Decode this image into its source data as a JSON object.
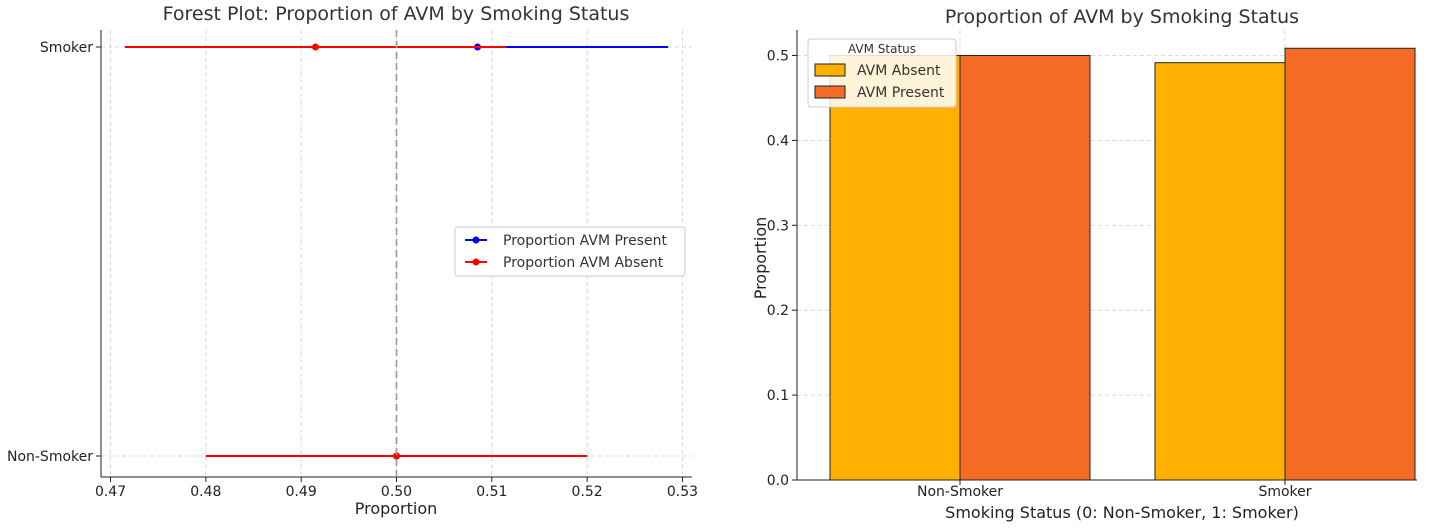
{
  "chart_data": [
    {
      "type": "forest",
      "title": "Forest Plot: Proportion of AVM by Smoking Status",
      "xlabel": "Proportion",
      "ylabel": "",
      "xlim": [
        0.469,
        0.531
      ],
      "xticks": [
        0.47,
        0.48,
        0.49,
        0.5,
        0.51,
        0.52,
        0.53
      ],
      "xtick_labels": [
        "0.47",
        "0.48",
        "0.49",
        "0.50",
        "0.51",
        "0.52",
        "0.53"
      ],
      "categories": [
        "Non-Smoker",
        "Smoker"
      ],
      "reference_line": 0.5,
      "grid": true,
      "legend_position": "center-right",
      "series": [
        {
          "name": "Proportion AVM Present",
          "color": "#0000ff",
          "points": [
            {
              "category": "Non-Smoker",
              "estimate": 0.5,
              "ci_low": 0.48,
              "ci_high": 0.52
            },
            {
              "category": "Smoker",
              "estimate": 0.5085,
              "ci_low": 0.4885,
              "ci_high": 0.5285
            }
          ]
        },
        {
          "name": "Proportion AVM Absent",
          "color": "#ff0000",
          "points": [
            {
              "category": "Non-Smoker",
              "estimate": 0.5,
              "ci_low": 0.48,
              "ci_high": 0.52
            },
            {
              "category": "Smoker",
              "estimate": 0.4915,
              "ci_low": 0.4715,
              "ci_high": 0.5115
            }
          ]
        }
      ]
    },
    {
      "type": "bar",
      "title": "Proportion of AVM by Smoking Status",
      "xlabel": "Smoking Status (0: Non-Smoker, 1: Smoker)",
      "ylabel": "Proportion",
      "ylim": [
        0,
        0.53
      ],
      "yticks": [
        0,
        0.1,
        0.2,
        0.3,
        0.4,
        0.5
      ],
      "ytick_labels": [
        "0.0",
        "0.1",
        "0.2",
        "0.3",
        "0.4",
        "0.5"
      ],
      "categories": [
        "Non-Smoker",
        "Smoker"
      ],
      "grid": true,
      "legend_title": "AVM Status",
      "legend_position": "top-left",
      "series": [
        {
          "name": "AVM Absent",
          "color": "#ffb000",
          "values": [
            0.5,
            0.4915
          ]
        },
        {
          "name": "AVM Present",
          "color": "#f46b24",
          "values": [
            0.5,
            0.5085
          ]
        }
      ]
    }
  ]
}
